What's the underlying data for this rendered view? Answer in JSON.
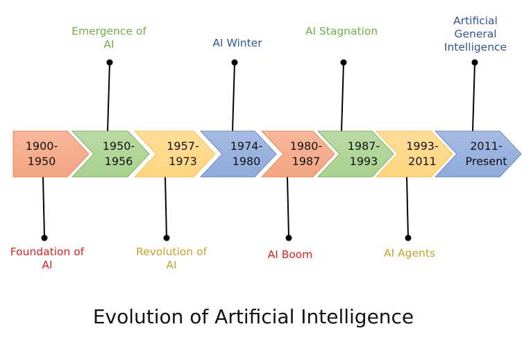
{
  "title": "Evolution of Artificial Intelligence",
  "colors": {
    "orange": "#f4a582",
    "green": "#a9d18e",
    "yellow": "#ffd580",
    "blue": "#8faadc"
  },
  "segments": [
    {
      "period": [
        "1900-",
        "1950"
      ],
      "color": "orange",
      "milestone": "Foundation of AI",
      "side": "bottom",
      "label_color": "#e3201b"
    },
    {
      "period": [
        "1950-",
        "1956"
      ],
      "color": "green",
      "milestone": "Emergence of AI",
      "side": "top",
      "label_color": "#70ad47"
    },
    {
      "period": [
        "1957-",
        "1973"
      ],
      "color": "yellow",
      "milestone": "Revolution of AI",
      "side": "bottom",
      "label_color": "#c9a227"
    },
    {
      "period": [
        "1974-",
        "1980"
      ],
      "color": "blue",
      "milestone": "AI Winter",
      "side": "top",
      "label_color": "#2f5597"
    },
    {
      "period": [
        "1980-",
        "1987"
      ],
      "color": "orange",
      "milestone": "AI Boom",
      "side": "bottom",
      "label_color": "#e3201b"
    },
    {
      "period": [
        "1987-",
        "1993"
      ],
      "color": "green",
      "milestone": "AI Stagnation",
      "side": "top",
      "label_color": "#70ad47"
    },
    {
      "period": [
        "1993-",
        "2011"
      ],
      "color": "yellow",
      "milestone": "AI Agents",
      "side": "bottom",
      "label_color": "#c9a227"
    },
    {
      "period": [
        "2011-",
        "Present"
      ],
      "color": "blue",
      "milestone": "Artificial General Intelligence",
      "side": "top",
      "label_color": "#2f5597"
    }
  ]
}
